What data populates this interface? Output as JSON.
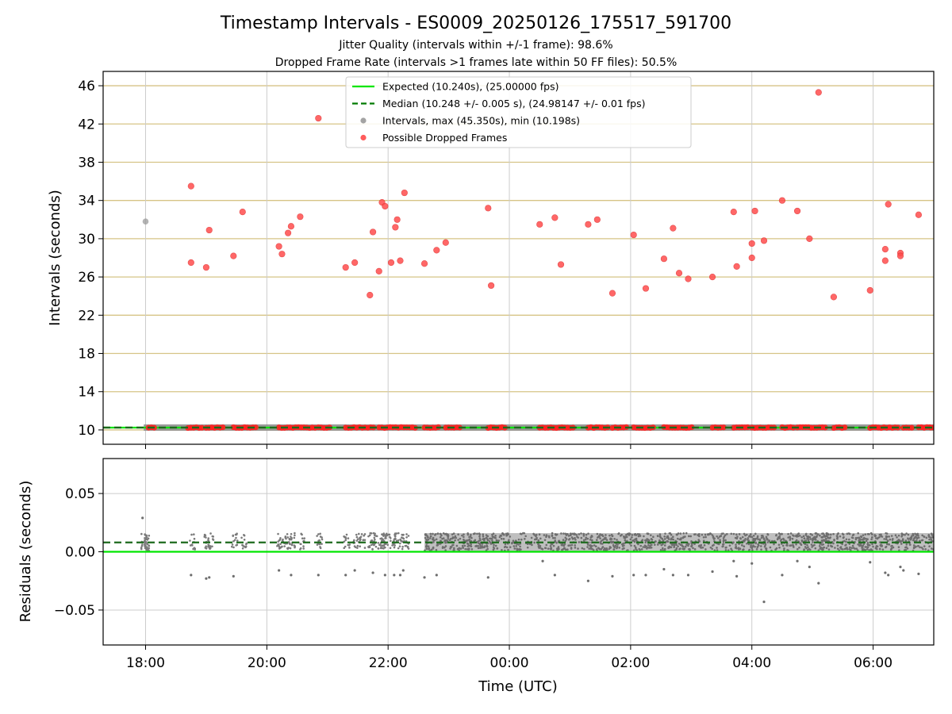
{
  "chart_data": {
    "type": "scatter",
    "title": "Timestamp Intervals - ES0009_20250126_175517_591700",
    "subtitles": [
      "Jitter Quality (intervals within +/-1 frame): 98.6%",
      "Dropped Frame Rate (intervals >1 frames late within 50 FF files): 50.5%"
    ],
    "xlabel": "Time (UTC)",
    "x_ticks": [
      "18:00",
      "20:00",
      "22:00",
      "00:00",
      "02:00",
      "04:00",
      "06:00"
    ],
    "x_tick_hours": [
      18,
      20,
      22,
      24,
      26,
      28,
      30
    ],
    "xlim_hours": [
      17.3,
      31.0
    ],
    "legend_position": "top-center",
    "panels": [
      {
        "name": "intervals",
        "ylabel": "Intervals (seconds)",
        "ylim": [
          8.5,
          47.5
        ],
        "y_ticks": [
          "10",
          "14",
          "18",
          "22",
          "26",
          "30",
          "34",
          "38",
          "42",
          "46"
        ],
        "y_tick_values": [
          10,
          14,
          18,
          22,
          26,
          30,
          34,
          38,
          42,
          46
        ],
        "grid": true,
        "legend": [
          {
            "label": "Expected (10.240s), (25.00000 fps)",
            "color": "#00e600",
            "style": "solid-line"
          },
          {
            "label": "Median (10.248 +/- 0.005 s), (24.98147 +/- 0.01 fps)",
            "color": "#007a00",
            "style": "dashed-line"
          },
          {
            "label": "Intervals, max (45.350s), min (10.198s)",
            "color": "#8c8c8c",
            "style": "dot"
          },
          {
            "label": "Possible Dropped Frames",
            "color": "#ff3333",
            "style": "dot"
          }
        ],
        "expected_interval": 10.24,
        "median_interval": 10.248,
        "gray_points": [
          [
            18.0,
            31.8
          ]
        ],
        "dropped_points": [
          [
            18.75,
            27.5
          ],
          [
            18.75,
            35.5
          ],
          [
            19.0,
            27.0
          ],
          [
            19.05,
            30.9
          ],
          [
            19.45,
            28.2
          ],
          [
            19.6,
            32.8
          ],
          [
            20.2,
            29.2
          ],
          [
            20.25,
            28.4
          ],
          [
            20.35,
            30.6
          ],
          [
            20.4,
            31.3
          ],
          [
            20.55,
            32.3
          ],
          [
            20.85,
            42.6
          ],
          [
            21.3,
            27.0
          ],
          [
            21.45,
            27.5
          ],
          [
            21.7,
            24.1
          ],
          [
            21.75,
            30.7
          ],
          [
            21.85,
            26.6
          ],
          [
            21.9,
            33.8
          ],
          [
            21.95,
            33.4
          ],
          [
            22.05,
            27.5
          ],
          [
            22.12,
            31.2
          ],
          [
            22.15,
            32.0
          ],
          [
            22.2,
            27.7
          ],
          [
            22.27,
            34.8
          ],
          [
            22.6,
            27.4
          ],
          [
            22.8,
            28.8
          ],
          [
            22.95,
            29.6
          ],
          [
            23.65,
            33.2
          ],
          [
            23.7,
            25.1
          ],
          [
            24.5,
            31.5
          ],
          [
            24.75,
            32.2
          ],
          [
            24.85,
            27.3
          ],
          [
            25.3,
            31.5
          ],
          [
            25.45,
            32.0
          ],
          [
            25.7,
            24.3
          ],
          [
            26.05,
            30.4
          ],
          [
            26.25,
            24.8
          ],
          [
            26.55,
            27.9
          ],
          [
            26.7,
            31.1
          ],
          [
            26.8,
            26.4
          ],
          [
            26.95,
            25.8
          ],
          [
            27.35,
            26.0
          ],
          [
            27.7,
            32.8
          ],
          [
            27.75,
            27.1
          ],
          [
            28.0,
            28.0
          ],
          [
            28.0,
            29.5
          ],
          [
            28.05,
            32.9
          ],
          [
            28.2,
            29.8
          ],
          [
            28.5,
            34.0
          ],
          [
            28.75,
            32.9
          ],
          [
            28.95,
            30.0
          ],
          [
            29.1,
            45.3
          ],
          [
            29.35,
            23.9
          ],
          [
            29.95,
            24.6
          ],
          [
            30.2,
            27.7
          ],
          [
            30.2,
            28.9
          ],
          [
            30.25,
            33.6
          ],
          [
            30.45,
            28.5
          ],
          [
            30.45,
            28.2
          ],
          [
            30.75,
            32.5
          ]
        ],
        "dropped_bands": [
          [
            18.05,
            18.15
          ],
          [
            18.7,
            18.95
          ],
          [
            19.0,
            19.3
          ],
          [
            19.45,
            19.85
          ],
          [
            20.2,
            20.8
          ],
          [
            20.85,
            21.05
          ],
          [
            21.3,
            21.8
          ],
          [
            21.85,
            22.45
          ],
          [
            22.6,
            22.85
          ],
          [
            22.95,
            23.2
          ],
          [
            23.65,
            23.95
          ],
          [
            24.5,
            25.05
          ],
          [
            25.3,
            25.65
          ],
          [
            25.7,
            25.95
          ],
          [
            26.05,
            26.4
          ],
          [
            26.55,
            27.05
          ],
          [
            27.35,
            27.55
          ],
          [
            27.7,
            27.95
          ],
          [
            28.0,
            28.4
          ],
          [
            28.5,
            28.7
          ],
          [
            28.75,
            29.25
          ],
          [
            29.35,
            29.55
          ],
          [
            29.95,
            30.45
          ],
          [
            30.5,
            30.65
          ],
          [
            30.75,
            30.95
          ],
          [
            30.95,
            31.0
          ]
        ]
      },
      {
        "name": "residuals",
        "ylabel": "Residuals (seconds)",
        "ylim": [
          -0.08,
          0.08
        ],
        "y_ticks": [
          "0.05",
          "0.00",
          "−0.05"
        ],
        "y_tick_values": [
          0.05,
          0.0,
          -0.05
        ],
        "grid": true,
        "expected_residual": 0.0,
        "median_residual": 0.008,
        "outliers": [
          [
            17.95,
            0.029
          ],
          [
            18.75,
            -0.02
          ],
          [
            19.0,
            -0.023
          ],
          [
            19.05,
            -0.022
          ],
          [
            19.45,
            -0.021
          ],
          [
            20.2,
            -0.016
          ],
          [
            20.4,
            -0.02
          ],
          [
            20.85,
            -0.02
          ],
          [
            21.3,
            -0.02
          ],
          [
            21.45,
            -0.016
          ],
          [
            21.75,
            -0.018
          ],
          [
            21.95,
            -0.02
          ],
          [
            22.1,
            -0.02
          ],
          [
            22.2,
            -0.02
          ],
          [
            22.25,
            -0.016
          ],
          [
            22.6,
            -0.022
          ],
          [
            22.8,
            -0.02
          ],
          [
            23.65,
            -0.022
          ],
          [
            24.55,
            -0.008
          ],
          [
            24.75,
            -0.02
          ],
          [
            25.3,
            -0.025
          ],
          [
            25.7,
            -0.021
          ],
          [
            26.05,
            -0.02
          ],
          [
            26.25,
            -0.02
          ],
          [
            26.55,
            -0.015
          ],
          [
            26.7,
            -0.02
          ],
          [
            26.95,
            -0.02
          ],
          [
            27.35,
            -0.017
          ],
          [
            27.7,
            -0.008
          ],
          [
            27.75,
            -0.021
          ],
          [
            28.0,
            -0.01
          ],
          [
            28.2,
            -0.043
          ],
          [
            28.5,
            -0.02
          ],
          [
            28.75,
            -0.008
          ],
          [
            28.95,
            -0.013
          ],
          [
            29.1,
            -0.027
          ],
          [
            29.95,
            -0.009
          ],
          [
            30.2,
            -0.018
          ],
          [
            30.25,
            -0.02
          ],
          [
            30.45,
            -0.013
          ],
          [
            30.5,
            -0.016
          ],
          [
            30.75,
            -0.019
          ]
        ]
      }
    ]
  }
}
